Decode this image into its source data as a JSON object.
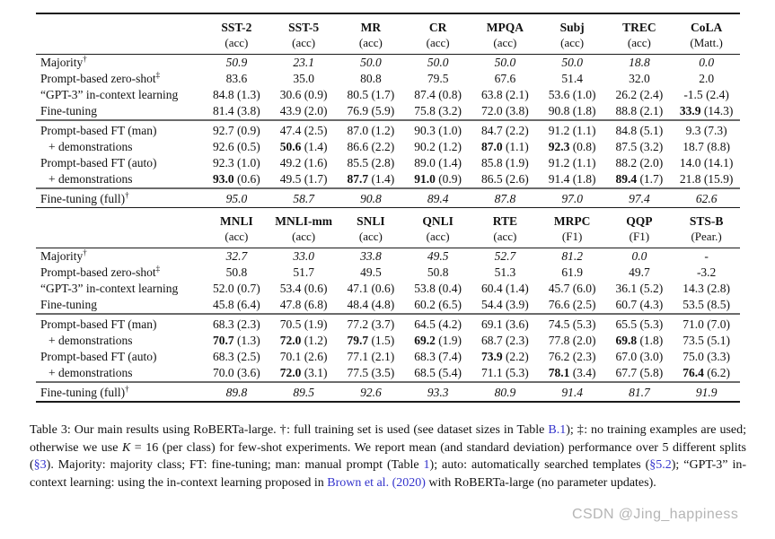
{
  "colors": {
    "link_blue": "#3333cc",
    "rule_black": "#1a1a1a",
    "rule_gray": "#6b6b6b",
    "watermark_gray": "#b5b5b5"
  },
  "watermark": {
    "text": "CSDN @Jing_happiness"
  },
  "tables": [
    {
      "name": "single-sentence-tasks-table",
      "columns": [
        {
          "name": "SST-2",
          "metric": "(acc)"
        },
        {
          "name": "SST-5",
          "metric": "(acc)"
        },
        {
          "name": "MR",
          "metric": "(acc)"
        },
        {
          "name": "CR",
          "metric": "(acc)"
        },
        {
          "name": "MPQA",
          "metric": "(acc)"
        },
        {
          "name": "Subj",
          "metric": "(acc)"
        },
        {
          "name": "TREC",
          "metric": "(acc)"
        },
        {
          "name": "CoLA",
          "metric": "(Matt.)"
        }
      ],
      "sections": [
        {
          "rows": [
            {
              "label": "Majority",
              "sup": "†",
              "italic": true,
              "cells": [
                [
                  "50.9"
                ],
                [
                  "23.1"
                ],
                [
                  "50.0"
                ],
                [
                  "50.0"
                ],
                [
                  "50.0"
                ],
                [
                  "50.0"
                ],
                [
                  "18.8"
                ],
                [
                  "0.0"
                ]
              ]
            },
            {
              "label": "Prompt-based zero-shot",
              "sup": "‡",
              "cells": [
                [
                  "83.6"
                ],
                [
                  "35.0"
                ],
                [
                  "80.8"
                ],
                [
                  "79.5"
                ],
                [
                  "67.6"
                ],
                [
                  "51.4"
                ],
                [
                  "32.0"
                ],
                [
                  "2.0"
                ]
              ]
            },
            {
              "label": "“GPT-3” in-context learning",
              "cells": [
                [
                  "84.8",
                  "(1.3)"
                ],
                [
                  "30.6",
                  "(0.9)"
                ],
                [
                  "80.5",
                  "(1.7)"
                ],
                [
                  "87.4",
                  "(0.8)"
                ],
                [
                  "63.8",
                  "(2.1)"
                ],
                [
                  "53.6",
                  "(1.0)"
                ],
                [
                  "26.2",
                  "(2.4)"
                ],
                [
                  "-1.5",
                  "(2.4)"
                ]
              ]
            },
            {
              "label": "Fine-tuning",
              "cells": [
                [
                  "81.4",
                  "(3.8)"
                ],
                [
                  "43.9",
                  "(2.0)"
                ],
                [
                  "76.9",
                  "(5.9)"
                ],
                [
                  "75.8",
                  "(3.2)"
                ],
                [
                  "72.0",
                  "(3.8)"
                ],
                [
                  "90.8",
                  "(1.8)"
                ],
                [
                  "88.8",
                  "(2.1)"
                ],
                [
                  "33.9",
                  "(14.3)",
                  1
                ]
              ]
            }
          ]
        },
        {
          "rows": [
            {
              "label": "Prompt-based FT (man)",
              "cells": [
                [
                  "92.7",
                  "(0.9)"
                ],
                [
                  "47.4",
                  "(2.5)"
                ],
                [
                  "87.0",
                  "(1.2)"
                ],
                [
                  "90.3",
                  "(1.0)"
                ],
                [
                  "84.7",
                  "(2.2)"
                ],
                [
                  "91.2",
                  "(1.1)"
                ],
                [
                  "84.8",
                  "(5.1)"
                ],
                [
                  "9.3",
                  "(7.3)"
                ]
              ]
            },
            {
              "label": "+ demonstrations",
              "indent": true,
              "cells": [
                [
                  "92.6",
                  "(0.5)"
                ],
                [
                  "50.6",
                  "(1.4)",
                  1
                ],
                [
                  "86.6",
                  "(2.2)"
                ],
                [
                  "90.2",
                  "(1.2)"
                ],
                [
                  "87.0",
                  "(1.1)",
                  1
                ],
                [
                  "92.3",
                  "(0.8)",
                  1
                ],
                [
                  "87.5",
                  "(3.2)"
                ],
                [
                  "18.7",
                  "(8.8)"
                ]
              ]
            },
            {
              "label": "Prompt-based FT (auto)",
              "cells": [
                [
                  "92.3",
                  "(1.0)"
                ],
                [
                  "49.2",
                  "(1.6)"
                ],
                [
                  "85.5",
                  "(2.8)"
                ],
                [
                  "89.0",
                  "(1.4)"
                ],
                [
                  "85.8",
                  "(1.9)"
                ],
                [
                  "91.2",
                  "(1.1)"
                ],
                [
                  "88.2",
                  "(2.0)"
                ],
                [
                  "14.0",
                  "(14.1)"
                ]
              ]
            },
            {
              "label": "+ demonstrations",
              "indent": true,
              "cells": [
                [
                  "93.0",
                  "(0.6)",
                  1
                ],
                [
                  "49.5",
                  "(1.7)"
                ],
                [
                  "87.7",
                  "(1.4)",
                  1
                ],
                [
                  "91.0",
                  "(0.9)",
                  1
                ],
                [
                  "86.5",
                  "(2.6)"
                ],
                [
                  "91.4",
                  "(1.8)"
                ],
                [
                  "89.4",
                  "(1.7)",
                  1
                ],
                [
                  "21.8",
                  "(15.9)"
                ]
              ]
            }
          ]
        },
        {
          "rows": [
            {
              "label": "Fine-tuning (full)",
              "sup": "†",
              "italic": true,
              "cells": [
                [
                  "95.0"
                ],
                [
                  "58.7"
                ],
                [
                  "90.8"
                ],
                [
                  "89.4"
                ],
                [
                  "87.8"
                ],
                [
                  "97.0"
                ],
                [
                  "97.4"
                ],
                [
                  "62.6"
                ]
              ]
            }
          ]
        }
      ]
    },
    {
      "name": "sentence-pair-tasks-table",
      "columns": [
        {
          "name": "MNLI",
          "metric": "(acc)"
        },
        {
          "name": "MNLI-mm",
          "metric": "(acc)"
        },
        {
          "name": "SNLI",
          "metric": "(acc)"
        },
        {
          "name": "QNLI",
          "metric": "(acc)"
        },
        {
          "name": "RTE",
          "metric": "(acc)"
        },
        {
          "name": "MRPC",
          "metric": "(F1)"
        },
        {
          "name": "QQP",
          "metric": "(F1)"
        },
        {
          "name": "STS-B",
          "metric": "(Pear.)"
        }
      ],
      "sections": [
        {
          "rows": [
            {
              "label": "Majority",
              "sup": "†",
              "italic": true,
              "cells": [
                [
                  "32.7"
                ],
                [
                  "33.0"
                ],
                [
                  "33.8"
                ],
                [
                  "49.5"
                ],
                [
                  "52.7"
                ],
                [
                  "81.2"
                ],
                [
                  "0.0"
                ],
                [
                  "-"
                ]
              ]
            },
            {
              "label": "Prompt-based zero-shot",
              "sup": "‡",
              "cells": [
                [
                  "50.8"
                ],
                [
                  "51.7"
                ],
                [
                  "49.5"
                ],
                [
                  "50.8"
                ],
                [
                  "51.3"
                ],
                [
                  "61.9"
                ],
                [
                  "49.7"
                ],
                [
                  "-3.2"
                ]
              ]
            },
            {
              "label": "“GPT-3” in-context learning",
              "cells": [
                [
                  "52.0",
                  "(0.7)"
                ],
                [
                  "53.4",
                  "(0.6)"
                ],
                [
                  "47.1",
                  "(0.6)"
                ],
                [
                  "53.8",
                  "(0.4)"
                ],
                [
                  "60.4",
                  "(1.4)"
                ],
                [
                  "45.7",
                  "(6.0)"
                ],
                [
                  "36.1",
                  "(5.2)"
                ],
                [
                  "14.3",
                  "(2.8)"
                ]
              ]
            },
            {
              "label": "Fine-tuning",
              "cells": [
                [
                  "45.8",
                  "(6.4)"
                ],
                [
                  "47.8",
                  "(6.8)"
                ],
                [
                  "48.4",
                  "(4.8)"
                ],
                [
                  "60.2",
                  "(6.5)"
                ],
                [
                  "54.4",
                  "(3.9)"
                ],
                [
                  "76.6",
                  "(2.5)"
                ],
                [
                  "60.7",
                  "(4.3)"
                ],
                [
                  "53.5",
                  "(8.5)"
                ]
              ]
            }
          ]
        },
        {
          "rows": [
            {
              "label": "Prompt-based FT (man)",
              "cells": [
                [
                  "68.3",
                  "(2.3)"
                ],
                [
                  "70.5",
                  "(1.9)"
                ],
                [
                  "77.2",
                  "(3.7)"
                ],
                [
                  "64.5",
                  "(4.2)"
                ],
                [
                  "69.1",
                  "(3.6)"
                ],
                [
                  "74.5",
                  "(5.3)"
                ],
                [
                  "65.5",
                  "(5.3)"
                ],
                [
                  "71.0",
                  "(7.0)"
                ]
              ]
            },
            {
              "label": "+ demonstrations",
              "indent": true,
              "cells": [
                [
                  "70.7",
                  "(1.3)",
                  1
                ],
                [
                  "72.0",
                  "(1.2)",
                  1
                ],
                [
                  "79.7",
                  "(1.5)",
                  1
                ],
                [
                  "69.2",
                  "(1.9)",
                  1
                ],
                [
                  "68.7",
                  "(2.3)"
                ],
                [
                  "77.8",
                  "(2.0)"
                ],
                [
                  "69.8",
                  "(1.8)",
                  1
                ],
                [
                  "73.5",
                  "(5.1)"
                ]
              ]
            },
            {
              "label": "Prompt-based FT (auto)",
              "cells": [
                [
                  "68.3",
                  "(2.5)"
                ],
                [
                  "70.1",
                  "(2.6)"
                ],
                [
                  "77.1",
                  "(2.1)"
                ],
                [
                  "68.3",
                  "(7.4)"
                ],
                [
                  "73.9",
                  "(2.2)",
                  1
                ],
                [
                  "76.2",
                  "(2.3)"
                ],
                [
                  "67.0",
                  "(3.0)"
                ],
                [
                  "75.0",
                  "(3.3)"
                ]
              ]
            },
            {
              "label": "+ demonstrations",
              "indent": true,
              "cells": [
                [
                  "70.0",
                  "(3.6)"
                ],
                [
                  "72.0",
                  "(3.1)",
                  1
                ],
                [
                  "77.5",
                  "(3.5)"
                ],
                [
                  "68.5",
                  "(5.4)"
                ],
                [
                  "71.1",
                  "(5.3)"
                ],
                [
                  "78.1",
                  "(3.4)",
                  1
                ],
                [
                  "67.7",
                  "(5.8)"
                ],
                [
                  "76.4",
                  "(6.2)",
                  1
                ]
              ]
            }
          ]
        },
        {
          "rows": [
            {
              "label": "Fine-tuning (full)",
              "sup": "†",
              "italic": true,
              "cells": [
                [
                  "89.8"
                ],
                [
                  "89.5"
                ],
                [
                  "92.6"
                ],
                [
                  "93.3"
                ],
                [
                  "80.9"
                ],
                [
                  "91.4"
                ],
                [
                  "81.7"
                ],
                [
                  "91.9"
                ]
              ]
            }
          ]
        }
      ]
    }
  ],
  "caption": {
    "segments": [
      {
        "t": "Table 3: Our main results using RoBERTa-large. †: full training set is used (see dataset sizes in Table "
      },
      {
        "t": "B.1",
        "k": "link"
      },
      {
        "t": "); ‡: no training examples are used; otherwise we use "
      },
      {
        "t": "K",
        "k": "math"
      },
      {
        "t": " = 16 (per class) for few-shot experiments. We report mean (and standard deviation) performance over 5 different splits ("
      },
      {
        "t": "§3",
        "k": "link"
      },
      {
        "t": "). Majority: majority class; FT: fine-tuning; man: manual prompt (Table "
      },
      {
        "t": "1",
        "k": "link"
      },
      {
        "t": "); auto: automatically searched templates ("
      },
      {
        "t": "§5.2",
        "k": "link"
      },
      {
        "t": "); “GPT-3” in-context learning: using the in-context learning proposed in "
      },
      {
        "t": "Brown et al. (2020)",
        "k": "link"
      },
      {
        "t": " with RoBERTa-large (no parameter updates)."
      }
    ]
  }
}
